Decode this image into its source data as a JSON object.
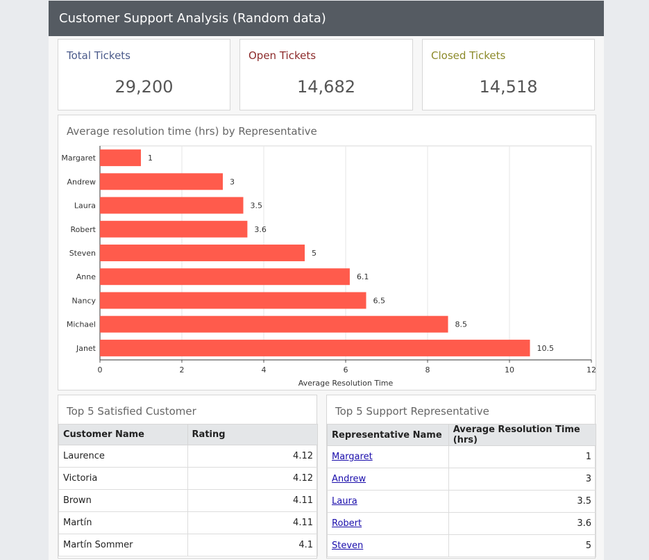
{
  "header": {
    "title": "Customer Support Analysis (Random data)"
  },
  "kpis": [
    {
      "title": "Total Tickets",
      "value": "29,200",
      "color": "#4a5a8a"
    },
    {
      "title": "Open Tickets",
      "value": "14,682",
      "color": "#8c2a2a"
    },
    {
      "title": "Closed Tickets",
      "value": "14,518",
      "color": "#8c8a2a"
    }
  ],
  "chart_data": {
    "type": "bar",
    "orientation": "horizontal",
    "title": "Average resolution time (hrs) by Representative",
    "xlabel": "Average Resolution Time",
    "ylabel": "",
    "categories": [
      "Margaret",
      "Andrew",
      "Laura",
      "Robert",
      "Steven",
      "Anne",
      "Nancy",
      "Michael",
      "Janet"
    ],
    "values": [
      1,
      3,
      3.5,
      3.6,
      5,
      6.1,
      6.5,
      8.5,
      10.5
    ],
    "xlim": [
      0,
      12
    ],
    "xticks": [
      0,
      2,
      4,
      6,
      8,
      10,
      12
    ],
    "grid": true,
    "bar_color": "#ff5b4c"
  },
  "customers_table": {
    "title": "Top 5 Satisfied Customer",
    "columns": [
      "Customer Name",
      "Rating"
    ],
    "rows": [
      [
        "Laurence",
        "4.12"
      ],
      [
        "Victoria",
        "4.12"
      ],
      [
        "Brown",
        "4.11"
      ],
      [
        "Martín",
        "4.11"
      ],
      [
        "Martín Sommer",
        "4.1"
      ]
    ]
  },
  "reps_table": {
    "title": "Top 5 Support Representative",
    "columns": [
      "Representative Name",
      "Average Resolution Time (hrs)"
    ],
    "rows": [
      [
        "Margaret",
        "1"
      ],
      [
        "Andrew",
        "3"
      ],
      [
        "Laura",
        "3.5"
      ],
      [
        "Robert",
        "3.6"
      ],
      [
        "Steven",
        "5"
      ]
    ]
  }
}
